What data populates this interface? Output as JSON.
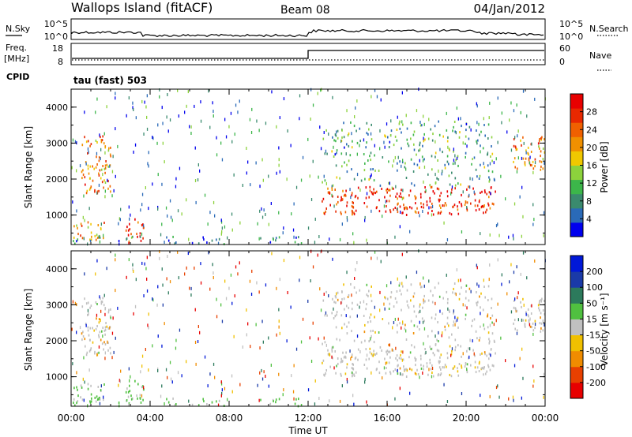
{
  "header": {
    "station": "Wallops Island (fitACF)",
    "beam": "Beam 08",
    "date": "04/Jan/2012"
  },
  "panels": {
    "nsky": {
      "left_label": "N.Sky",
      "right_label": "N.Search",
      "left_ticks": [
        "10^5",
        "10^0"
      ],
      "right_ticks": [
        "10^5",
        "10^0"
      ]
    },
    "freq": {
      "left_label": "Freq.",
      "left_unit": "[MHz]",
      "left_ticks": [
        "18",
        "8"
      ],
      "right_label": "Nave",
      "right_ticks": [
        "60",
        "0"
      ]
    },
    "cpid": {
      "label": "CPID",
      "value": "tau (fast) 503"
    }
  },
  "power_panel": {
    "ylabel": "Slant Range [km]",
    "yticks": [
      "4000",
      "3000",
      "2000",
      "1000"
    ],
    "colorbar_label": "Power [dB]",
    "colorbar_ticks": [
      "28",
      "24",
      "20",
      "16",
      "12",
      "8",
      "4"
    ],
    "colors": [
      "#0000ee",
      "#2a6ab8",
      "#3a8a6e",
      "#3cb64a",
      "#8cd23c",
      "#f0c800",
      "#f09000",
      "#f06000",
      "#e82800",
      "#e80000"
    ]
  },
  "velocity_panel": {
    "ylabel": "Slant Range [km]",
    "yticks": [
      "4000",
      "3000",
      "2000",
      "1000"
    ],
    "colorbar_label": "Velocity [m s⁻¹]",
    "colorbar_ticks": [
      "200",
      "100",
      "50",
      "15",
      "-15",
      "-50",
      "-100",
      "-200"
    ],
    "colors": [
      "#0018d8",
      "#1a3aa8",
      "#2c7a5c",
      "#50c040",
      "#c0c0c0",
      "#f0c000",
      "#f08c00",
      "#e84000",
      "#e80000"
    ]
  },
  "xaxis": {
    "ticks": [
      "00:00",
      "04:00",
      "08:00",
      "12:00",
      "16:00",
      "20:00",
      "00:00"
    ],
    "label": "Time UT"
  },
  "chart_data": {
    "type": "heatmap",
    "title": "Wallops Island (fitACF) Beam 08 04/Jan/2012",
    "xlabel": "Time UT",
    "ylabel": "Slant Range [km]",
    "xlim": [
      "00:00",
      "24:00"
    ],
    "ylim": [
      180,
      4500
    ],
    "power_scale_db": [
      0,
      32
    ],
    "velocity_scale_ms": [
      -250,
      250
    ],
    "frequency_mhz": [
      {
        "from": "00:00",
        "to": "12:00",
        "value": 10.5
      },
      {
        "from": "12:00",
        "to": "24:00",
        "value": 16.5
      }
    ],
    "echo_regions_power": [
      {
        "t_start": "00:30",
        "t_end": "02:00",
        "range_min_km": 1600,
        "range_max_km": 3200,
        "power_db": 22
      },
      {
        "t_start": "00:00",
        "t_end": "01:40",
        "range_min_km": 300,
        "range_max_km": 800,
        "power_db": 20
      },
      {
        "t_start": "02:40",
        "t_end": "03:40",
        "range_min_km": 200,
        "range_max_km": 900,
        "power_db": 26
      },
      {
        "t_start": "12:40",
        "t_end": "21:30",
        "range_min_km": 1000,
        "range_max_km": 1800,
        "power_db": 28
      },
      {
        "t_start": "12:40",
        "t_end": "21:30",
        "range_min_km": 1800,
        "range_max_km": 3600,
        "power_db": 10
      },
      {
        "t_start": "22:20",
        "t_end": "24:00",
        "range_min_km": 2200,
        "range_max_km": 3200,
        "power_db": 22
      },
      {
        "t_start": "00:00",
        "t_end": "12:00",
        "range_min_km": 180,
        "range_max_km": 400,
        "power_db": 6
      }
    ]
  }
}
